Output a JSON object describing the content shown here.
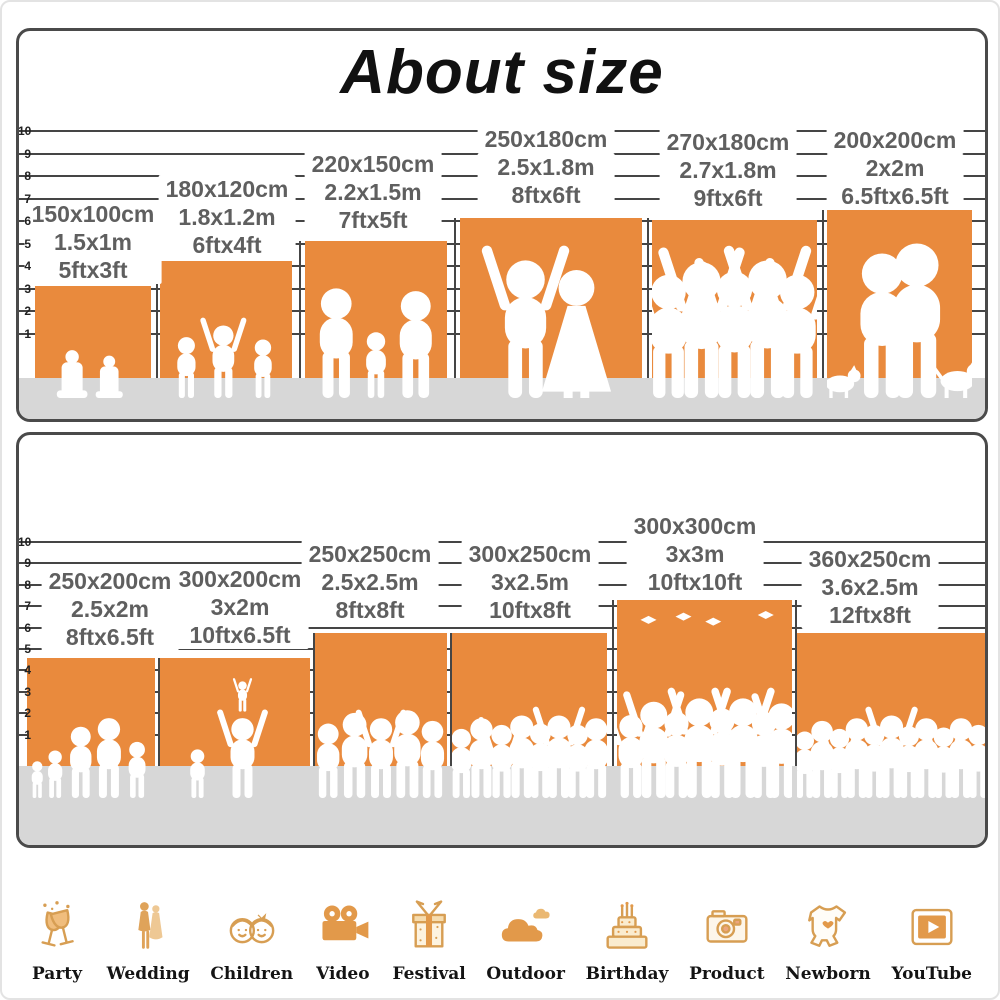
{
  "title": "About size",
  "colors": {
    "accent": "#e98a3d",
    "floor": "#d7d7d7",
    "line": "#454545",
    "label": "#5f5f5f",
    "title": "#111111",
    "icon": "#d79e53",
    "silhouette": "#ffffff"
  },
  "panels": [
    {
      "name": "feet-scale-top",
      "ruler": [
        "10",
        "9",
        "8",
        "7",
        "6",
        "5",
        "4",
        "3",
        "2",
        "1"
      ],
      "sizes": [
        {
          "cm": "150x100cm",
          "m": "1.5x1m",
          "ft": "5ftx3ft",
          "figures": "reading-children"
        },
        {
          "cm": "180x120cm",
          "m": "1.8x1.2m",
          "ft": "6ftx4ft",
          "figures": "running-children"
        },
        {
          "cm": "220x150cm",
          "m": "2.2x1.5m",
          "ft": "7ftx5ft",
          "figures": "family"
        },
        {
          "cm": "250x180cm",
          "m": "2.5x1.8m",
          "ft": "8ftx6ft",
          "figures": "wedding-couple"
        },
        {
          "cm": "270x180cm",
          "m": "2.7x1.8m",
          "ft": "9ftx6ft",
          "figures": "dancing-group"
        },
        {
          "cm": "200x200cm",
          "m": "2x2m",
          "ft": "6.5ftx6.5ft",
          "figures": "couple-with-dogs"
        }
      ]
    },
    {
      "name": "feet-scale-bottom",
      "ruler": [
        "10",
        "9",
        "8",
        "7",
        "6",
        "5",
        "4",
        "3",
        "2",
        "1"
      ],
      "sizes": [
        {
          "cm": "250x200cm",
          "m": "2.5x2m",
          "ft": "8ftx6.5ft",
          "figures": "family-group"
        },
        {
          "cm": "300x200cm",
          "m": "3x2m",
          "ft": "10ftx6.5ft",
          "figures": "parent-tossing-child"
        },
        {
          "cm": "250x250cm",
          "m": "2.5x2.5m",
          "ft": "8ftx8ft",
          "figures": "standing-group"
        },
        {
          "cm": "300x250cm",
          "m": "3x2.5m",
          "ft": "10ftx8ft",
          "figures": "crowd"
        },
        {
          "cm": "300x300cm",
          "m": "3x3m",
          "ft": "10ftx10ft",
          "figures": "graduation-crowd"
        },
        {
          "cm": "360x250cm",
          "m": "3.6x2.5m",
          "ft": "12ftx8ft",
          "figures": "large-crowd"
        }
      ]
    }
  ],
  "categories": [
    {
      "label": "Party",
      "icon": "party-glasses-icon"
    },
    {
      "label": "Wedding",
      "icon": "wedding-couple-icon"
    },
    {
      "label": "Children",
      "icon": "children-faces-icon"
    },
    {
      "label": "Video",
      "icon": "video-camera-icon"
    },
    {
      "label": "Festival",
      "icon": "gift-box-icon"
    },
    {
      "label": "Outdoor",
      "icon": "cloud-icon"
    },
    {
      "label": "Birthday",
      "icon": "birthday-cake-icon"
    },
    {
      "label": "Product",
      "icon": "photo-camera-icon"
    },
    {
      "label": "Newborn",
      "icon": "baby-onesie-icon"
    },
    {
      "label": "YouTube",
      "icon": "play-button-icon"
    }
  ]
}
